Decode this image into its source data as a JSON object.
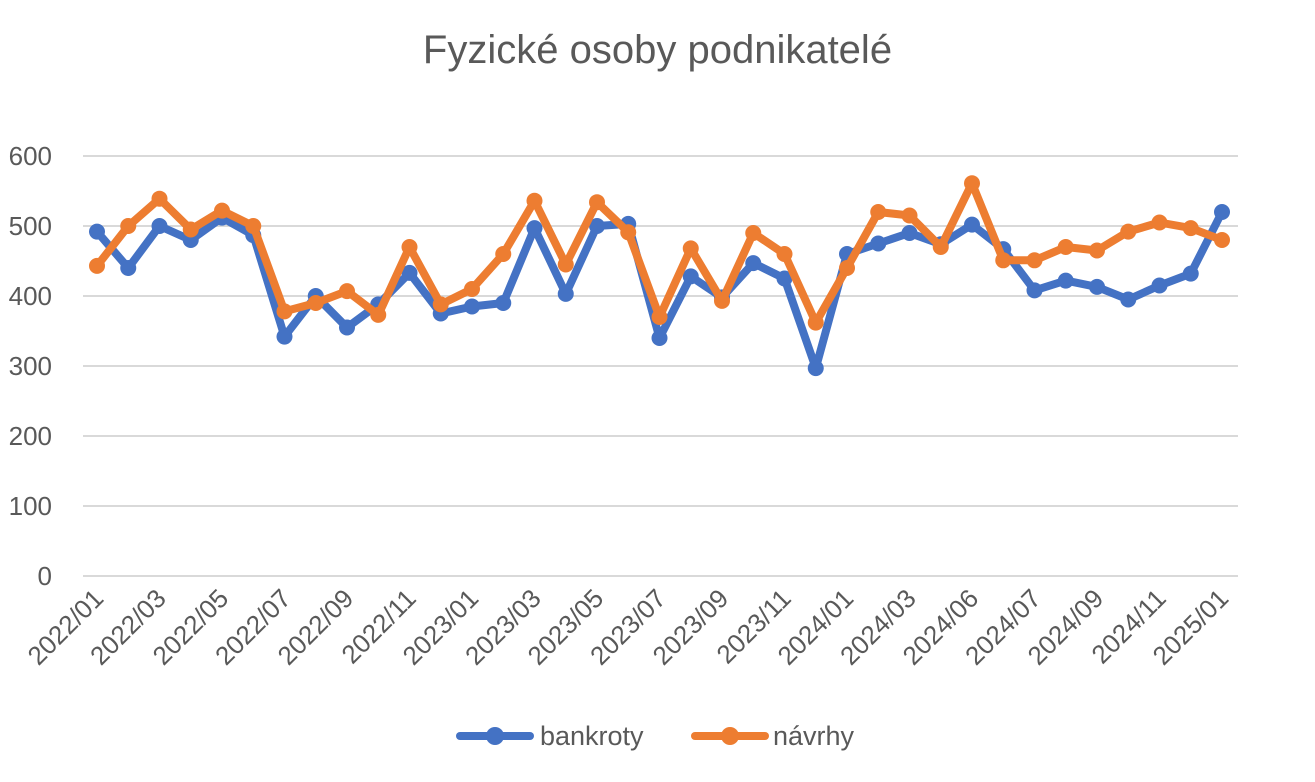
{
  "chart_data": {
    "type": "line",
    "title": "Fyzické osoby podnikatelé",
    "xlabel": "",
    "ylabel": "",
    "ylim": [
      0,
      600
    ],
    "yticks": [
      0,
      100,
      200,
      300,
      400,
      500,
      600
    ],
    "grid": true,
    "legend_position": "bottom",
    "x_tick_labels": [
      "2022/01",
      "2022/03",
      "2022/05",
      "2022/07",
      "2022/09",
      "2022/11",
      "2023/01",
      "2023/03",
      "2023/05",
      "2023/07",
      "2023/09",
      "2023/11",
      "2024/01",
      "2024/03",
      "2024/06",
      "2024/07",
      "2024/09",
      "2024/11",
      "2025/01"
    ],
    "series": [
      {
        "name": "bankroty",
        "color": "#4472C4",
        "values": [
          492,
          440,
          500,
          480,
          512,
          487,
          342,
          400,
          355,
          388,
          433,
          375,
          385,
          390,
          497,
          403,
          500,
          503,
          340,
          428,
          398,
          447,
          425,
          297,
          460,
          475,
          490,
          474,
          502,
          467,
          408,
          422,
          413,
          395,
          415,
          432,
          520
        ]
      },
      {
        "name": "návrhy",
        "color": "#ED7D31",
        "values": [
          443,
          500,
          539,
          495,
          522,
          500,
          378,
          390,
          407,
          373,
          470,
          388,
          410,
          460,
          536,
          445,
          534,
          491,
          370,
          468,
          393,
          490,
          460,
          362,
          440,
          520,
          515,
          470,
          561,
          451,
          451,
          470,
          465,
          492,
          505,
          497,
          480
        ]
      }
    ]
  }
}
